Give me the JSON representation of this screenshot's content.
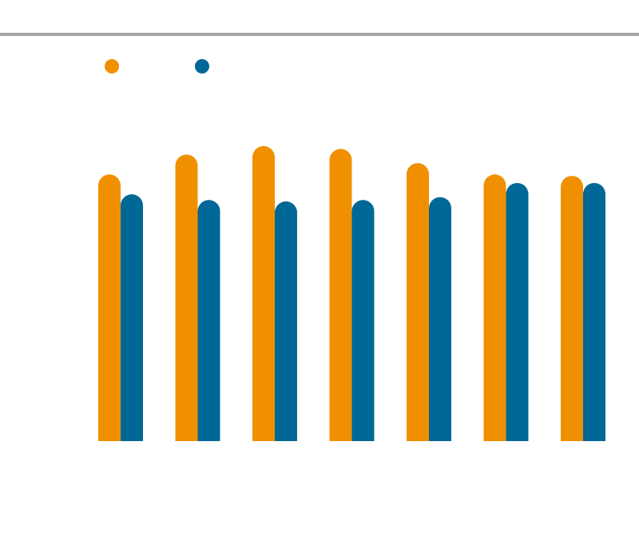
{
  "chart_data": {
    "type": "bar",
    "categories": [
      "",
      "",
      "",
      "",
      "",
      "",
      ""
    ],
    "series": [
      {
        "values": [
          0.94,
          1.01,
          1.04,
          1.03,
          0.98,
          0.94,
          0.935
        ],
        "color": "#f09000"
      },
      {
        "values": [
          0.87,
          0.85,
          0.845,
          0.85,
          0.86,
          0.91,
          0.91
        ],
        "color": "#006896"
      }
    ],
    "title": "",
    "xlabel": "",
    "ylabel": "",
    "ylim": [
      0,
      1.1
    ],
    "grid": false,
    "legend": "top-left"
  }
}
